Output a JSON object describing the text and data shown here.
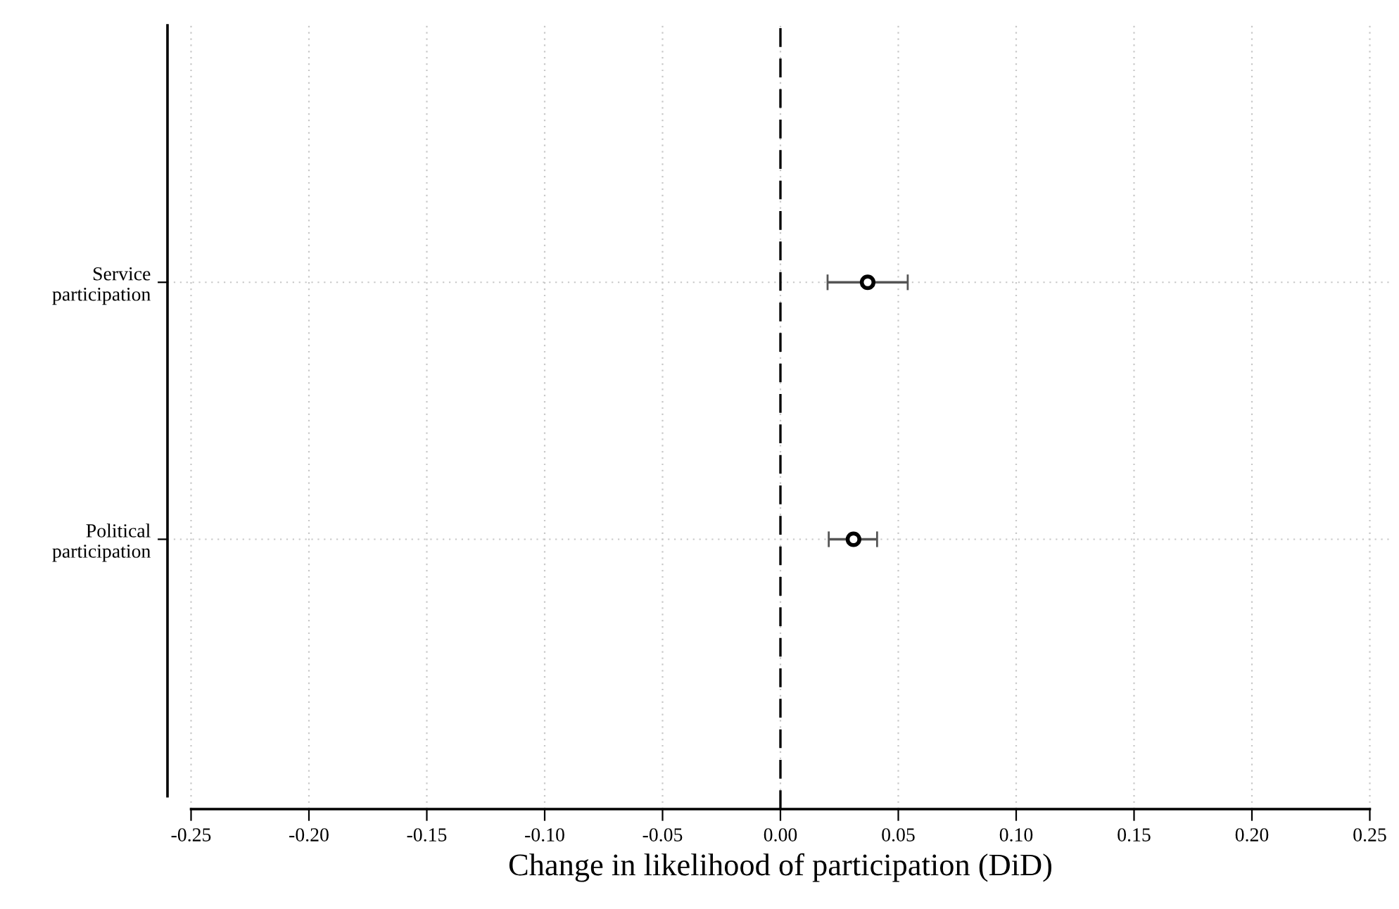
{
  "chart_data": {
    "type": "scatter",
    "orientation": "horizontal",
    "xlabel": "Change in likelihood of participation (DiD)",
    "categories": [
      "Service\nparticipation",
      "Political\nparticipation"
    ],
    "values": [
      0.037,
      0.031
    ],
    "errors": [
      [
        0.02,
        0.054
      ],
      [
        0.0205,
        0.041
      ]
    ],
    "color": "#000000",
    "marker": "circle",
    "xlim": [
      -0.26,
      0.26
    ],
    "xticks": [
      {
        "value": -0.25,
        "label": "-0.25"
      },
      {
        "value": -0.2,
        "label": "-0.20"
      },
      {
        "value": -0.15,
        "label": "-0.15"
      },
      {
        "value": -0.1,
        "label": "-0.10"
      },
      {
        "value": -0.05,
        "label": "-0.05"
      },
      {
        "value": 0,
        "label": "0.00"
      },
      {
        "value": 0.05,
        "label": "0.05"
      },
      {
        "value": 0.1,
        "label": "0.10"
      },
      {
        "value": 0.15,
        "label": "0.15"
      },
      {
        "value": 0.2,
        "label": "0.20"
      },
      {
        "value": 0.25,
        "label": "0.25"
      }
    ],
    "ref_lines": [
      {
        "axis": "x",
        "value": 0,
        "label": null,
        "line_style": "dashed",
        "color": "#000000"
      }
    ],
    "grid": true
  }
}
